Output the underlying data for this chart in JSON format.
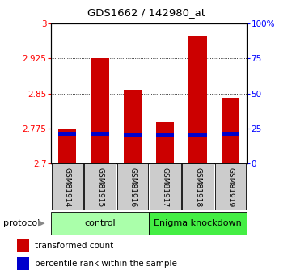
{
  "title": "GDS1662 / 142980_at",
  "samples": [
    "GSM81914",
    "GSM81915",
    "GSM81916",
    "GSM81917",
    "GSM81918",
    "GSM81919"
  ],
  "transformed_counts": [
    2.775,
    2.925,
    2.858,
    2.788,
    2.975,
    2.84
  ],
  "percentile_ranks": [
    21,
    21,
    20,
    20,
    20,
    21
  ],
  "ylim_left": [
    2.7,
    3.0
  ],
  "ylim_right": [
    0,
    100
  ],
  "left_ticks": [
    2.7,
    2.775,
    2.85,
    2.925,
    3.0
  ],
  "right_ticks": [
    0,
    25,
    50,
    75,
    100
  ],
  "left_tick_labels": [
    "2.7",
    "2.775",
    "2.85",
    "2.925",
    "3"
  ],
  "right_tick_labels": [
    "0",
    "25",
    "50",
    "75",
    "100%"
  ],
  "groups": [
    {
      "label": "control",
      "color": "#aaffaa",
      "start": 0,
      "end": 3
    },
    {
      "label": "Enigma knockdown",
      "color": "#44ee44",
      "start": 3,
      "end": 6
    }
  ],
  "bar_color": "#cc0000",
  "percentile_color": "#0000cc",
  "bar_width": 0.55,
  "protocol_label": "protocol",
  "legend_items": [
    {
      "label": "transformed count",
      "color": "#cc0000"
    },
    {
      "label": "percentile rank within the sample",
      "color": "#0000cc"
    }
  ]
}
